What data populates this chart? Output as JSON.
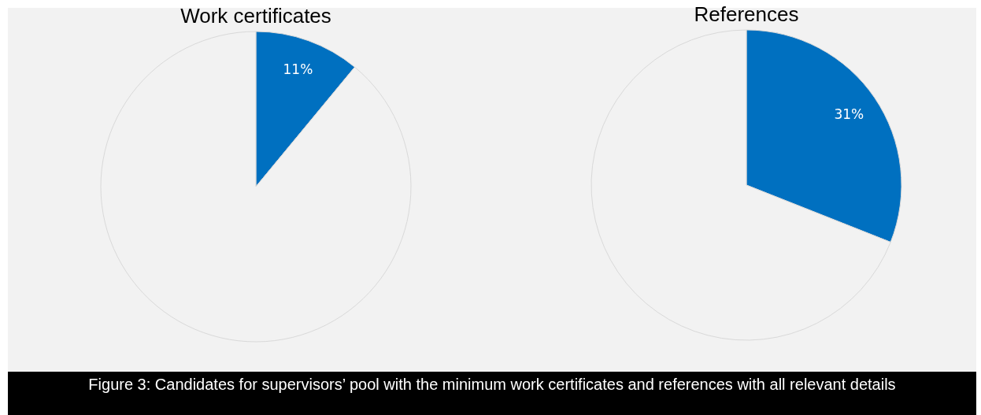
{
  "chart_data": [
    {
      "type": "pie",
      "title": "Work certificates",
      "categories": [
        null,
        null
      ],
      "values": [
        11,
        89
      ],
      "colors": [
        "#0070c0",
        "#f2f2f2"
      ],
      "value_labels": [
        "11%",
        null
      ]
    },
    {
      "type": "pie",
      "title": "References",
      "categories": [
        null,
        null
      ],
      "values": [
        31,
        69
      ],
      "colors": [
        "#0070c0",
        "#f2f2f2"
      ],
      "value_labels": [
        "31%",
        null
      ]
    },
    {
      "type": "other",
      "annotations": [
        "Figure 3: Candidates for supervisors’ pool with the minimum work certificates and references with all relevant details"
      ]
    }
  ]
}
